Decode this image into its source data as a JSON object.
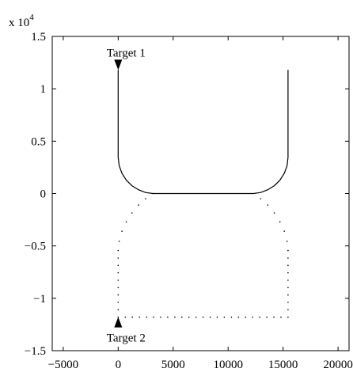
{
  "chart_data": {
    "type": "line",
    "title": "",
    "xlabel": "",
    "ylabel": "",
    "xlim": [
      -6000,
      21000
    ],
    "ylim": [
      -15000,
      15000
    ],
    "y_scale_label": "x 10",
    "y_scale_exponent": "4",
    "xticks": [
      {
        "value": -5000,
        "label": "−5000"
      },
      {
        "value": 0,
        "label": "0"
      },
      {
        "value": 5000,
        "label": "5000"
      },
      {
        "value": 10000,
        "label": "10000"
      },
      {
        "value": 15000,
        "label": "15000"
      },
      {
        "value": 20000,
        "label": "20000"
      }
    ],
    "yticks": [
      {
        "value": -15000,
        "label": "−1.5"
      },
      {
        "value": -10000,
        "label": "−1"
      },
      {
        "value": -5000,
        "label": "−0.5"
      },
      {
        "value": 0,
        "label": "0"
      },
      {
        "value": 5000,
        "label": "0.5"
      },
      {
        "value": 10000,
        "label": "1"
      },
      {
        "value": 15000,
        "label": "1.5"
      }
    ],
    "grid": false,
    "series": [
      {
        "style": "solid",
        "color": "#000000",
        "x": [
          0,
          0,
          88,
          343,
          737,
          1250,
          1847,
          2492,
          3150,
          12300,
          12958,
          13603,
          14200,
          14713,
          15107,
          15362,
          15450,
          15450
        ],
        "y": [
          11800,
          3450,
          2663,
          1930,
          1280,
          750,
          360,
          95,
          0,
          0,
          95,
          360,
          750,
          1280,
          1930,
          2663,
          3450,
          11800
        ]
      },
      {
        "style": "dotted",
        "color": "#000000",
        "x": [
          3150,
          2492,
          1847,
          1250,
          737,
          343,
          88,
          0,
          0,
          15450,
          15450,
          15362,
          15107,
          14713,
          14200,
          13603,
          12958,
          12300
        ],
        "y": [
          0,
          -490,
          -1100,
          -1850,
          -2700,
          -3600,
          -4550,
          -5450,
          -11800,
          -11800,
          -5450,
          -4550,
          -3600,
          -2700,
          -1850,
          -1100,
          -490,
          0
        ]
      }
    ],
    "annotations": [
      {
        "text": "Target 1",
        "x": 0,
        "y": 11800,
        "marker": "triangle-down"
      },
      {
        "text": "Target 2",
        "x": 0,
        "y": -11800,
        "marker": "triangle-up"
      }
    ]
  }
}
